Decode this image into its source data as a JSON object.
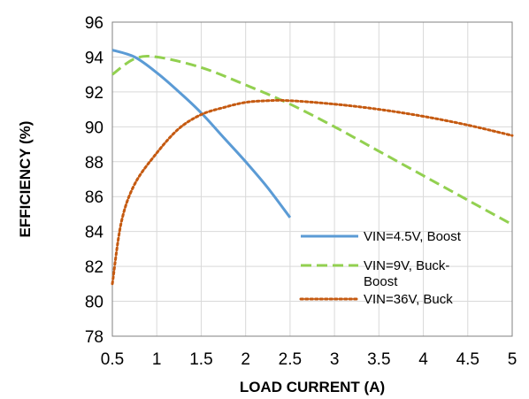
{
  "chart_data": {
    "type": "line",
    "xlabel": "LOAD CURRENT  (A)",
    "ylabel": "EFFICIENCY  (%)",
    "xlim": [
      0.5,
      5
    ],
    "ylim": [
      78,
      96
    ],
    "x_ticks": [
      "0.5",
      "1",
      "1.5",
      "2",
      "2.5",
      "3",
      "3.5",
      "4",
      "4.5",
      "5"
    ],
    "y_ticks": [
      "78",
      "80",
      "82",
      "84",
      "86",
      "88",
      "90",
      "92",
      "94",
      "96"
    ],
    "grid": true,
    "legend_position": "lower-right",
    "series": [
      {
        "name": "VIN=4.5V, Boost",
        "color": "#5b9bd5",
        "style": "solid",
        "x": [
          0.5,
          0.75,
          1.0,
          1.25,
          1.5,
          1.75,
          2.0,
          2.25,
          2.5
        ],
        "y": [
          94.4,
          94.0,
          93.1,
          92.0,
          90.8,
          89.4,
          88.0,
          86.5,
          84.8
        ]
      },
      {
        "name": "VIN=9V,  Buck-Boost",
        "color": "#92d050",
        "style": "dashed",
        "x": [
          0.5,
          0.75,
          1.0,
          1.5,
          2.0,
          2.5,
          3.0,
          3.5,
          4.0,
          4.5,
          5.0
        ],
        "y": [
          93.0,
          93.9,
          94.0,
          93.4,
          92.4,
          91.3,
          90.0,
          88.6,
          87.2,
          85.8,
          84.4
        ]
      },
      {
        "name": "VIN=36V, Buck",
        "color": "#c55a11",
        "style": "dotted",
        "x": [
          0.5,
          0.6,
          0.75,
          1.0,
          1.25,
          1.5,
          1.75,
          2.0,
          2.25,
          2.5,
          3.0,
          3.5,
          4.0,
          4.5,
          5.0
        ],
        "y": [
          81.0,
          84.5,
          86.7,
          88.5,
          89.9,
          90.7,
          91.1,
          91.4,
          91.5,
          91.5,
          91.3,
          91.0,
          90.6,
          90.1,
          89.5
        ]
      }
    ]
  }
}
